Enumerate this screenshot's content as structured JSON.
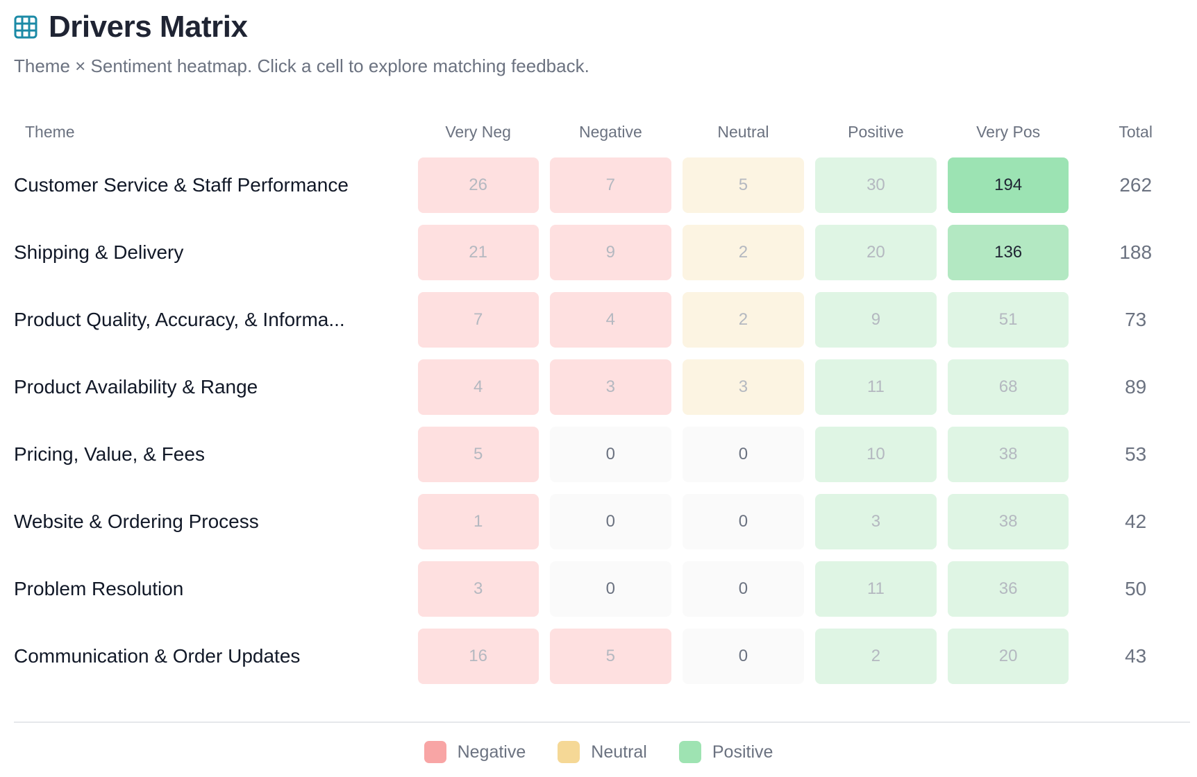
{
  "header": {
    "title": "Drivers Matrix",
    "icon": "grid-table-icon",
    "subtitle": "Theme × Sentiment heatmap. Click a cell to explore matching feedback."
  },
  "columns": {
    "theme": "Theme",
    "very_neg": "Very Neg",
    "negative": "Negative",
    "neutral": "Neutral",
    "positive": "Positive",
    "very_pos": "Very Pos",
    "total": "Total"
  },
  "rows": [
    {
      "theme": "Customer Service & Staff Performance",
      "very_neg": "26",
      "negative": "7",
      "neutral": "5",
      "positive": "30",
      "very_pos": "194",
      "total": "262"
    },
    {
      "theme": "Shipping & Delivery",
      "very_neg": "21",
      "negative": "9",
      "neutral": "2",
      "positive": "20",
      "very_pos": "136",
      "total": "188"
    },
    {
      "theme": "Product Quality, Accuracy, & Informa...",
      "very_neg": "7",
      "negative": "4",
      "neutral": "2",
      "positive": "9",
      "very_pos": "51",
      "total": "73"
    },
    {
      "theme": "Product Availability & Range",
      "very_neg": "4",
      "negative": "3",
      "neutral": "3",
      "positive": "11",
      "very_pos": "68",
      "total": "89"
    },
    {
      "theme": "Pricing, Value, & Fees",
      "very_neg": "5",
      "negative": "0",
      "neutral": "0",
      "positive": "10",
      "very_pos": "38",
      "total": "53"
    },
    {
      "theme": "Website & Ordering Process",
      "very_neg": "1",
      "negative": "0",
      "neutral": "0",
      "positive": "3",
      "very_pos": "38",
      "total": "42"
    },
    {
      "theme": "Problem Resolution",
      "very_neg": "3",
      "negative": "0",
      "neutral": "0",
      "positive": "11",
      "very_pos": "36",
      "total": "50"
    },
    {
      "theme": "Communication & Order Updates",
      "very_neg": "16",
      "negative": "5",
      "neutral": "0",
      "positive": "2",
      "very_pos": "20",
      "total": "43"
    }
  ],
  "legend": {
    "negative": {
      "label": "Negative",
      "color": "#f8a5a5"
    },
    "neutral": {
      "label": "Neutral",
      "color": "#f5d896"
    },
    "positive": {
      "label": "Positive",
      "color": "#9ee3b2"
    }
  },
  "colors": {
    "accent_icon": "#1b8aa6",
    "title": "#1f2433",
    "muted": "#6b7280"
  }
}
